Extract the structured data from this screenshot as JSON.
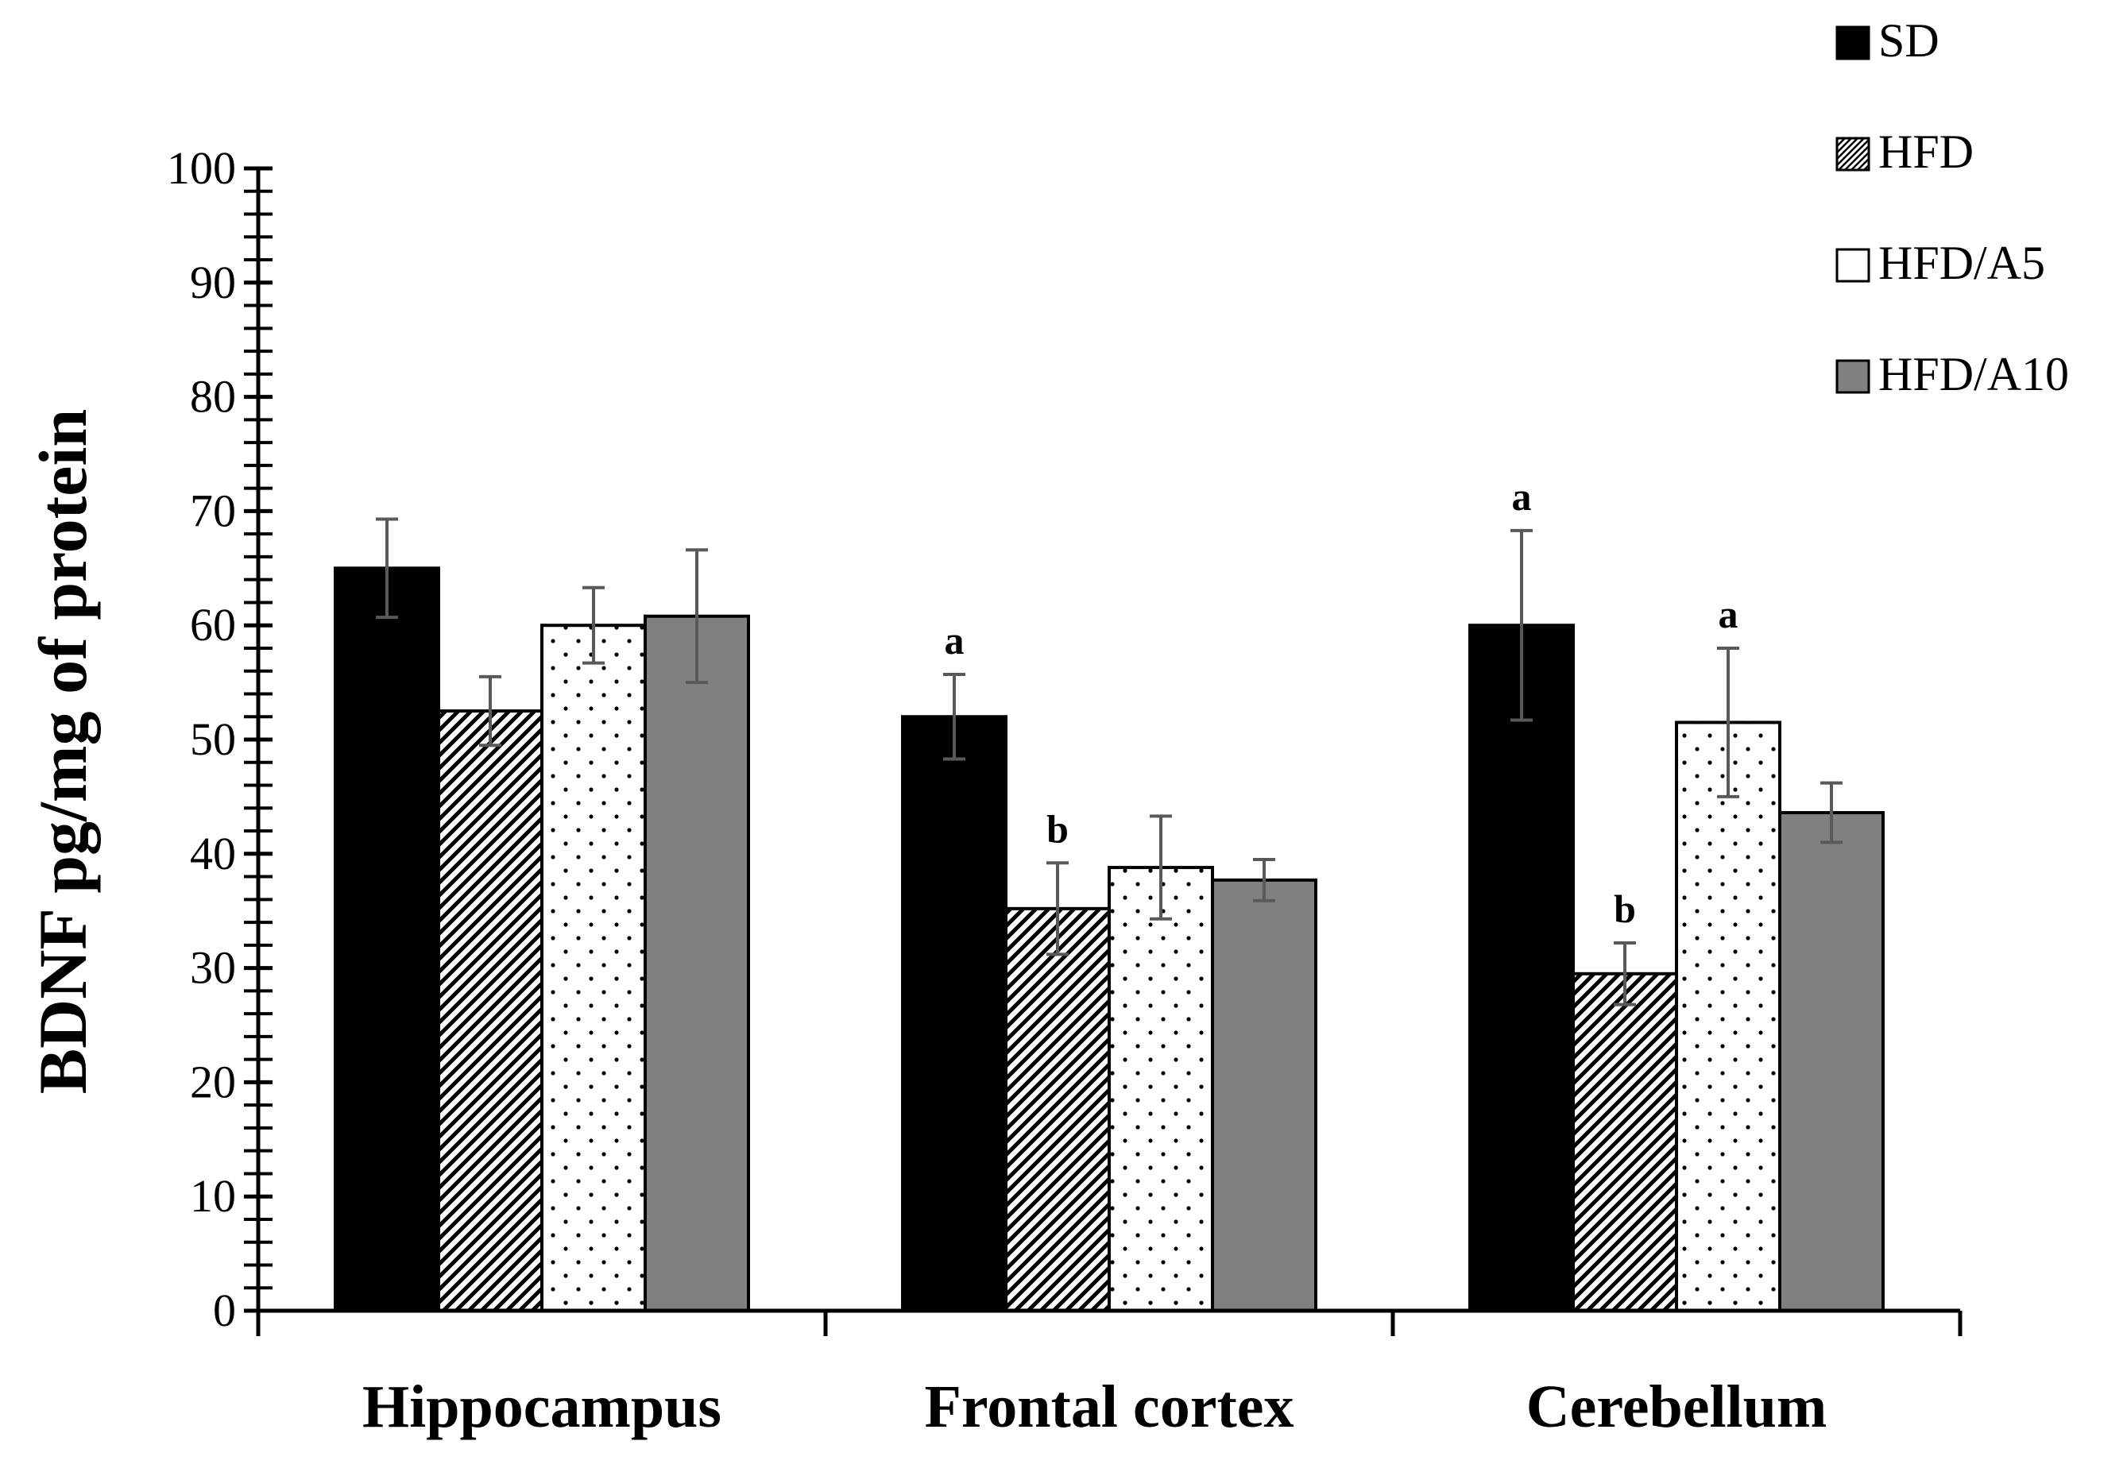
{
  "chart_data": {
    "type": "bar",
    "title": "",
    "xlabel": "",
    "ylabel": "BDNF pg/mg of protein",
    "ylim": [
      0,
      100
    ],
    "y_major_ticks": [
      0,
      10,
      20,
      30,
      40,
      50,
      60,
      70,
      80,
      90,
      100
    ],
    "y_minor_step": 2,
    "categories": [
      "Hippocampus",
      "Frontal cortex",
      "Cerebellum"
    ],
    "legend_position": "top-right",
    "series": [
      {
        "name": "SD",
        "pattern": "solid-black",
        "color": "#000000",
        "values": [
          65,
          52,
          60
        ],
        "errors": [
          4.3,
          3.7,
          8.3
        ],
        "labels": [
          "",
          "a",
          "a"
        ]
      },
      {
        "name": "HFD",
        "pattern": "diagonal-hatch",
        "color": "#000000",
        "values": [
          52.5,
          35.2,
          29.5
        ],
        "errors": [
          3.0,
          4.0,
          2.7
        ],
        "labels": [
          "",
          "b",
          "b"
        ]
      },
      {
        "name": "HFD/A5",
        "pattern": "dots",
        "color": "#000000",
        "values": [
          60,
          38.8,
          51.5
        ],
        "errors": [
          3.3,
          4.5,
          6.5
        ],
        "labels": [
          "",
          "",
          "a"
        ]
      },
      {
        "name": "HFD/A10",
        "pattern": "solid-gray",
        "color": "#808080",
        "values": [
          60.8,
          37.7,
          43.6
        ],
        "errors": [
          5.8,
          1.8,
          2.6
        ],
        "labels": [
          "",
          "",
          ""
        ]
      }
    ]
  }
}
